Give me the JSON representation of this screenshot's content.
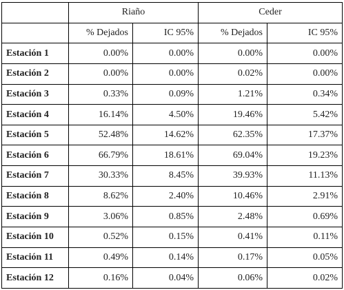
{
  "table": {
    "groups": [
      "Riaño",
      "Ceder"
    ],
    "subheaders": [
      "% Dejados",
      "IC 95%",
      "% Dejados",
      "IC 95%"
    ],
    "rows": [
      {
        "label": "Estación 1",
        "values": [
          "0.00%",
          "0.00%",
          "0.00%",
          "0.00%"
        ]
      },
      {
        "label": "Estación 2",
        "values": [
          "0.00%",
          "0.00%",
          "0.02%",
          "0.00%"
        ]
      },
      {
        "label": "Estación 3",
        "values": [
          "0.33%",
          "0.09%",
          "1.21%",
          "0.34%"
        ]
      },
      {
        "label": "Estación 4",
        "values": [
          "16.14%",
          "4.50%",
          "19.46%",
          "5.42%"
        ]
      },
      {
        "label": "Estación 5",
        "values": [
          "52.48%",
          "14.62%",
          "62.35%",
          "17.37%"
        ]
      },
      {
        "label": "Estación 6",
        "values": [
          "66.79%",
          "18.61%",
          "69.04%",
          "19.23%"
        ]
      },
      {
        "label": "Estación 7",
        "values": [
          "30.33%",
          "8.45%",
          "39.93%",
          "11.13%"
        ]
      },
      {
        "label": "Estación 8",
        "values": [
          "8.62%",
          "2.40%",
          "10.46%",
          "2.91%"
        ]
      },
      {
        "label": "Estación 9",
        "values": [
          "3.06%",
          "0.85%",
          "2.48%",
          "0.69%"
        ]
      },
      {
        "label": "Estación 10",
        "values": [
          "0.52%",
          "0.15%",
          "0.41%",
          "0.11%"
        ]
      },
      {
        "label": "Estación 11",
        "values": [
          "0.49%",
          "0.14%",
          "0.17%",
          "0.05%"
        ]
      },
      {
        "label": "Estación 12",
        "values": [
          "0.16%",
          "0.04%",
          "0.06%",
          "0.02%"
        ]
      }
    ]
  }
}
